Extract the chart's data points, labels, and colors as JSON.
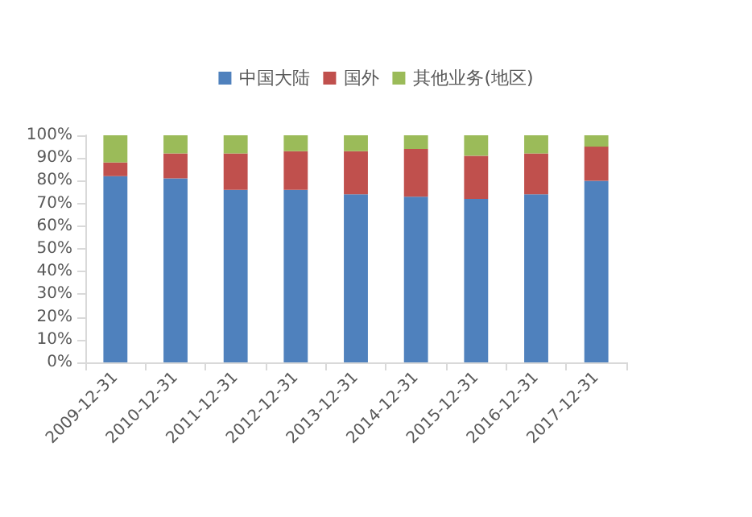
{
  "chart_data": {
    "type": "bar",
    "stacked": true,
    "categories": [
      "2009-12-31",
      "2010-12-31",
      "2011-12-31",
      "2012-12-31",
      "2013-12-31",
      "2014-12-31",
      "2015-12-31",
      "2016-12-31",
      "2017-12-31"
    ],
    "series": [
      {
        "name": "中国大陆",
        "color": "#4f81bd",
        "values": [
          82,
          81,
          76,
          76,
          74,
          73,
          72,
          74,
          80
        ]
      },
      {
        "name": "国外",
        "color": "#c0504d",
        "values": [
          6,
          11,
          16,
          17,
          19,
          21,
          19,
          18,
          15
        ]
      },
      {
        "name": "其他业务(地区)",
        "color": "#9bbb59",
        "values": [
          12,
          8,
          8,
          7,
          7,
          6,
          9,
          8,
          5
        ]
      }
    ],
    "ylim": [
      0,
      100
    ],
    "yticks": [
      {
        "value": 0,
        "label": "0%"
      },
      {
        "value": 10,
        "label": "10%"
      },
      {
        "value": 20,
        "label": "20%"
      },
      {
        "value": 30,
        "label": "30%"
      },
      {
        "value": 40,
        "label": "40%"
      },
      {
        "value": 50,
        "label": "50%"
      },
      {
        "value": 60,
        "label": "60%"
      },
      {
        "value": 70,
        "label": "70%"
      },
      {
        "value": 80,
        "label": "80%"
      },
      {
        "value": 90,
        "label": "90%"
      },
      {
        "value": 100,
        "label": "100%"
      }
    ],
    "grid": false,
    "legend": "top"
  }
}
